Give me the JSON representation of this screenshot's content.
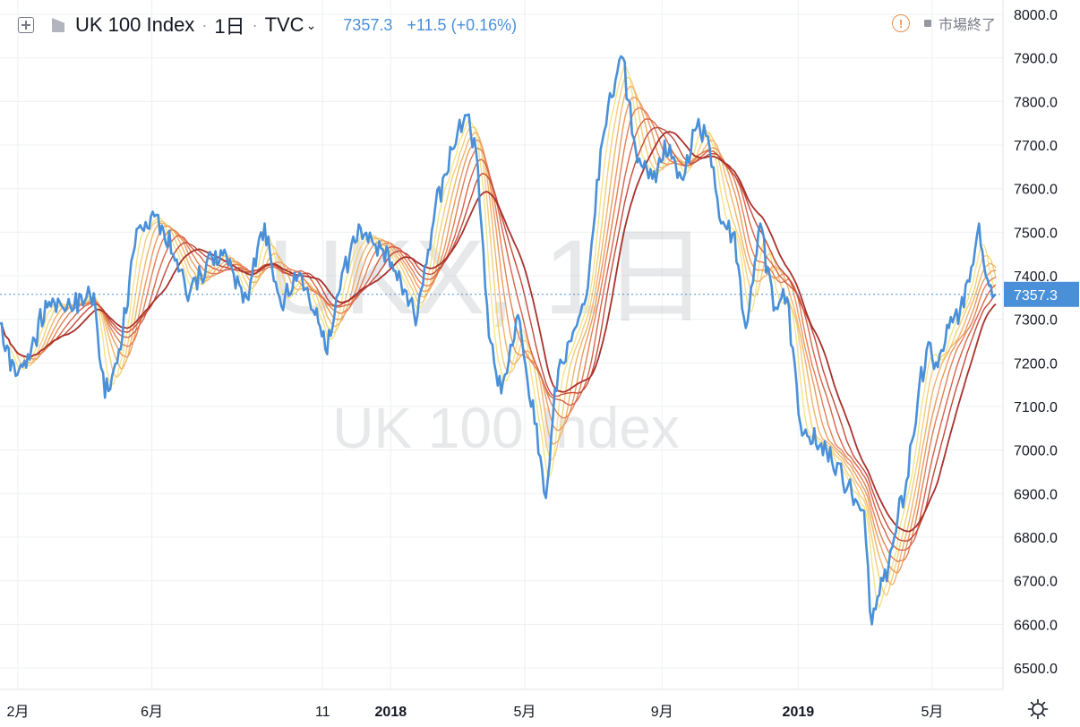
{
  "header": {
    "symbol_title": "UK 100 Index",
    "separator": "·",
    "interval": "1日",
    "source": "TVC",
    "source_chevron": "⌄",
    "last_price": "7357.3",
    "change": "+11.5 (+0.16%)",
    "add_icon": "plus-box-icon",
    "symbol_icon": "flag-icon"
  },
  "status": {
    "warning_icon_glyph": "!",
    "label": "市場終了"
  },
  "watermark": {
    "line1": "UKX, 1日",
    "line2": "UK 100 Index"
  },
  "chart_data": {
    "type": "line",
    "ylim": [
      6500,
      8000
    ],
    "yticks": [
      6500,
      6600,
      6700,
      6800,
      6900,
      7000,
      7100,
      7200,
      7300,
      7400,
      7500,
      7600,
      7700,
      7800,
      7900,
      8000
    ],
    "ytick_labels": [
      "6500.0",
      "6600.0",
      "6700.0",
      "6800.0",
      "6900.0",
      "7000.0",
      "7100.0",
      "7200.0",
      "7300.0",
      "7400.0",
      "7500.0",
      "7600.0",
      "7700.0",
      "7800.0",
      "7900.0",
      "8000.0"
    ],
    "xlim": [
      "2017-01-16",
      "2019-06-27"
    ],
    "xticks": [
      {
        "date": "2017-02-01",
        "label": "2月"
      },
      {
        "date": "2017-06-01",
        "label": "6月"
      },
      {
        "date": "2017-11-01",
        "label": "11"
      },
      {
        "date": "2018-01-01",
        "label": "2018"
      },
      {
        "date": "2018-05-01",
        "label": "5月"
      },
      {
        "date": "2018-09-01",
        "label": "9月"
      },
      {
        "date": "2019-01-01",
        "label": "2019"
      },
      {
        "date": "2019-05-01",
        "label": "5月"
      }
    ],
    "last_value": 7357.3,
    "last_value_label": "7357.3",
    "grid": true,
    "series": [
      {
        "color": "#4a90d9",
        "points": [
          [
            "2017-01-16",
            7290
          ],
          [
            "2017-01-30",
            7170
          ],
          [
            "2017-02-10",
            7220
          ],
          [
            "2017-03-01",
            7340
          ],
          [
            "2017-03-20",
            7330
          ],
          [
            "2017-04-10",
            7360
          ],
          [
            "2017-04-20",
            7120
          ],
          [
            "2017-05-01",
            7200
          ],
          [
            "2017-05-20",
            7510
          ],
          [
            "2017-06-05",
            7540
          ],
          [
            "2017-06-20",
            7450
          ],
          [
            "2017-07-05",
            7360
          ],
          [
            "2017-07-20",
            7430
          ],
          [
            "2017-08-05",
            7460
          ],
          [
            "2017-08-25",
            7350
          ],
          [
            "2017-09-10",
            7520
          ],
          [
            "2017-09-25",
            7330
          ],
          [
            "2017-10-10",
            7400
          ],
          [
            "2017-10-25",
            7310
          ],
          [
            "2017-11-05",
            7220
          ],
          [
            "2017-11-20",
            7420
          ],
          [
            "2017-12-05",
            7510
          ],
          [
            "2017-12-25",
            7460
          ],
          [
            "2018-01-10",
            7390
          ],
          [
            "2018-01-25",
            7310
          ],
          [
            "2018-02-10",
            7560
          ],
          [
            "2018-02-25",
            7690
          ],
          [
            "2018-03-12",
            7770
          ],
          [
            "2018-03-20",
            7650
          ],
          [
            "2018-03-30",
            7260
          ],
          [
            "2018-04-10",
            7130
          ],
          [
            "2018-04-25",
            7310
          ],
          [
            "2018-05-10",
            7060
          ],
          [
            "2018-05-20",
            6890
          ],
          [
            "2018-05-28",
            7140
          ],
          [
            "2018-06-10",
            7250
          ],
          [
            "2018-06-25",
            7350
          ],
          [
            "2018-07-08",
            7690
          ],
          [
            "2018-07-18",
            7810
          ],
          [
            "2018-07-28",
            7900
          ],
          [
            "2018-08-10",
            7660
          ],
          [
            "2018-08-25",
            7640
          ],
          [
            "2018-09-08",
            7700
          ],
          [
            "2018-09-20",
            7620
          ],
          [
            "2018-10-02",
            7740
          ],
          [
            "2018-10-12",
            7720
          ],
          [
            "2018-10-24",
            7520
          ],
          [
            "2018-11-05",
            7500
          ],
          [
            "2018-11-15",
            7280
          ],
          [
            "2018-11-28",
            7520
          ],
          [
            "2018-12-10",
            7320
          ],
          [
            "2018-12-22",
            7350
          ],
          [
            "2019-01-03",
            7060
          ],
          [
            "2019-01-20",
            7010
          ],
          [
            "2019-02-05",
            6970
          ],
          [
            "2019-02-18",
            6900
          ],
          [
            "2019-03-01",
            6860
          ],
          [
            "2019-03-08",
            6600
          ],
          [
            "2019-03-18",
            6700
          ],
          [
            "2019-03-28",
            6800
          ],
          [
            "2019-04-08",
            6930
          ],
          [
            "2019-04-18",
            7110
          ],
          [
            "2019-04-26",
            7230
          ],
          [
            "2019-05-06",
            7190
          ],
          [
            "2019-05-16",
            7280
          ],
          [
            "2019-05-26",
            7320
          ],
          [
            "2019-06-05",
            7420
          ],
          [
            "2019-06-12",
            7520
          ],
          [
            "2019-06-18",
            7400
          ],
          [
            "2019-06-27",
            7357.3
          ]
        ]
      }
    ]
  },
  "colors": {
    "price_line": "#4a90d9",
    "last_price_tag": "#4a90d9",
    "ma_ribbon": [
      "#f3e48a",
      "#f4cf7a",
      "#f0b46a",
      "#eb9a5f",
      "#e37f54",
      "#d66449",
      "#c24a3c",
      "#a8312c"
    ],
    "grid": "#eef0f3",
    "axis_text": "#131722",
    "watermark": "rgba(170,172,178,0.28)"
  }
}
